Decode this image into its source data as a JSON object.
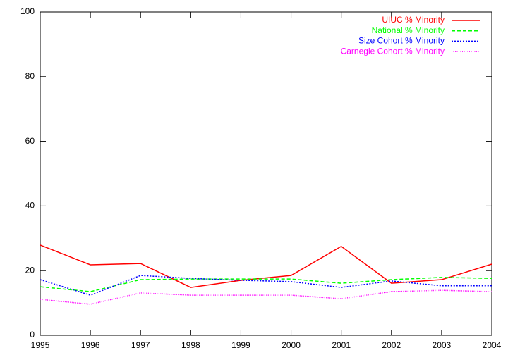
{
  "chart_data": {
    "type": "line",
    "x": [
      1995,
      1996,
      1997,
      1998,
      1999,
      2000,
      2001,
      2002,
      2003,
      2004
    ],
    "series": [
      {
        "name": "UIUC % Minority",
        "color": "#ff0000",
        "dash": "solid",
        "values": [
          27.9,
          21.8,
          22.2,
          14.8,
          17.0,
          18.5,
          27.5,
          16.1,
          17.2,
          22.0
        ]
      },
      {
        "name": "National % Minority",
        "color": "#00ff00",
        "dash": "dashed",
        "values": [
          15.0,
          13.5,
          17.2,
          17.4,
          17.4,
          17.4,
          16.1,
          17.2,
          17.9,
          17.6
        ]
      },
      {
        "name": "Size Cohort % Minority",
        "color": "#0000ff",
        "dash": "dotted",
        "values": [
          17.2,
          12.4,
          18.5,
          17.6,
          17.0,
          16.6,
          14.8,
          16.8,
          15.3,
          15.3
        ]
      },
      {
        "name": "Carnegie Cohort % Minority",
        "color": "#ff00ff",
        "dash": "fine-dotted",
        "values": [
          11.1,
          9.6,
          13.1,
          12.4,
          12.4,
          12.4,
          11.3,
          13.5,
          13.9,
          13.5
        ]
      }
    ],
    "xlim": [
      1995,
      2004
    ],
    "xticks": [
      1995,
      1996,
      1997,
      1998,
      1999,
      2000,
      2001,
      2002,
      2003,
      2004
    ],
    "ylim": [
      0,
      100
    ],
    "yticks": [
      0,
      20,
      40,
      60,
      80,
      100
    ],
    "legend": "top-right"
  }
}
